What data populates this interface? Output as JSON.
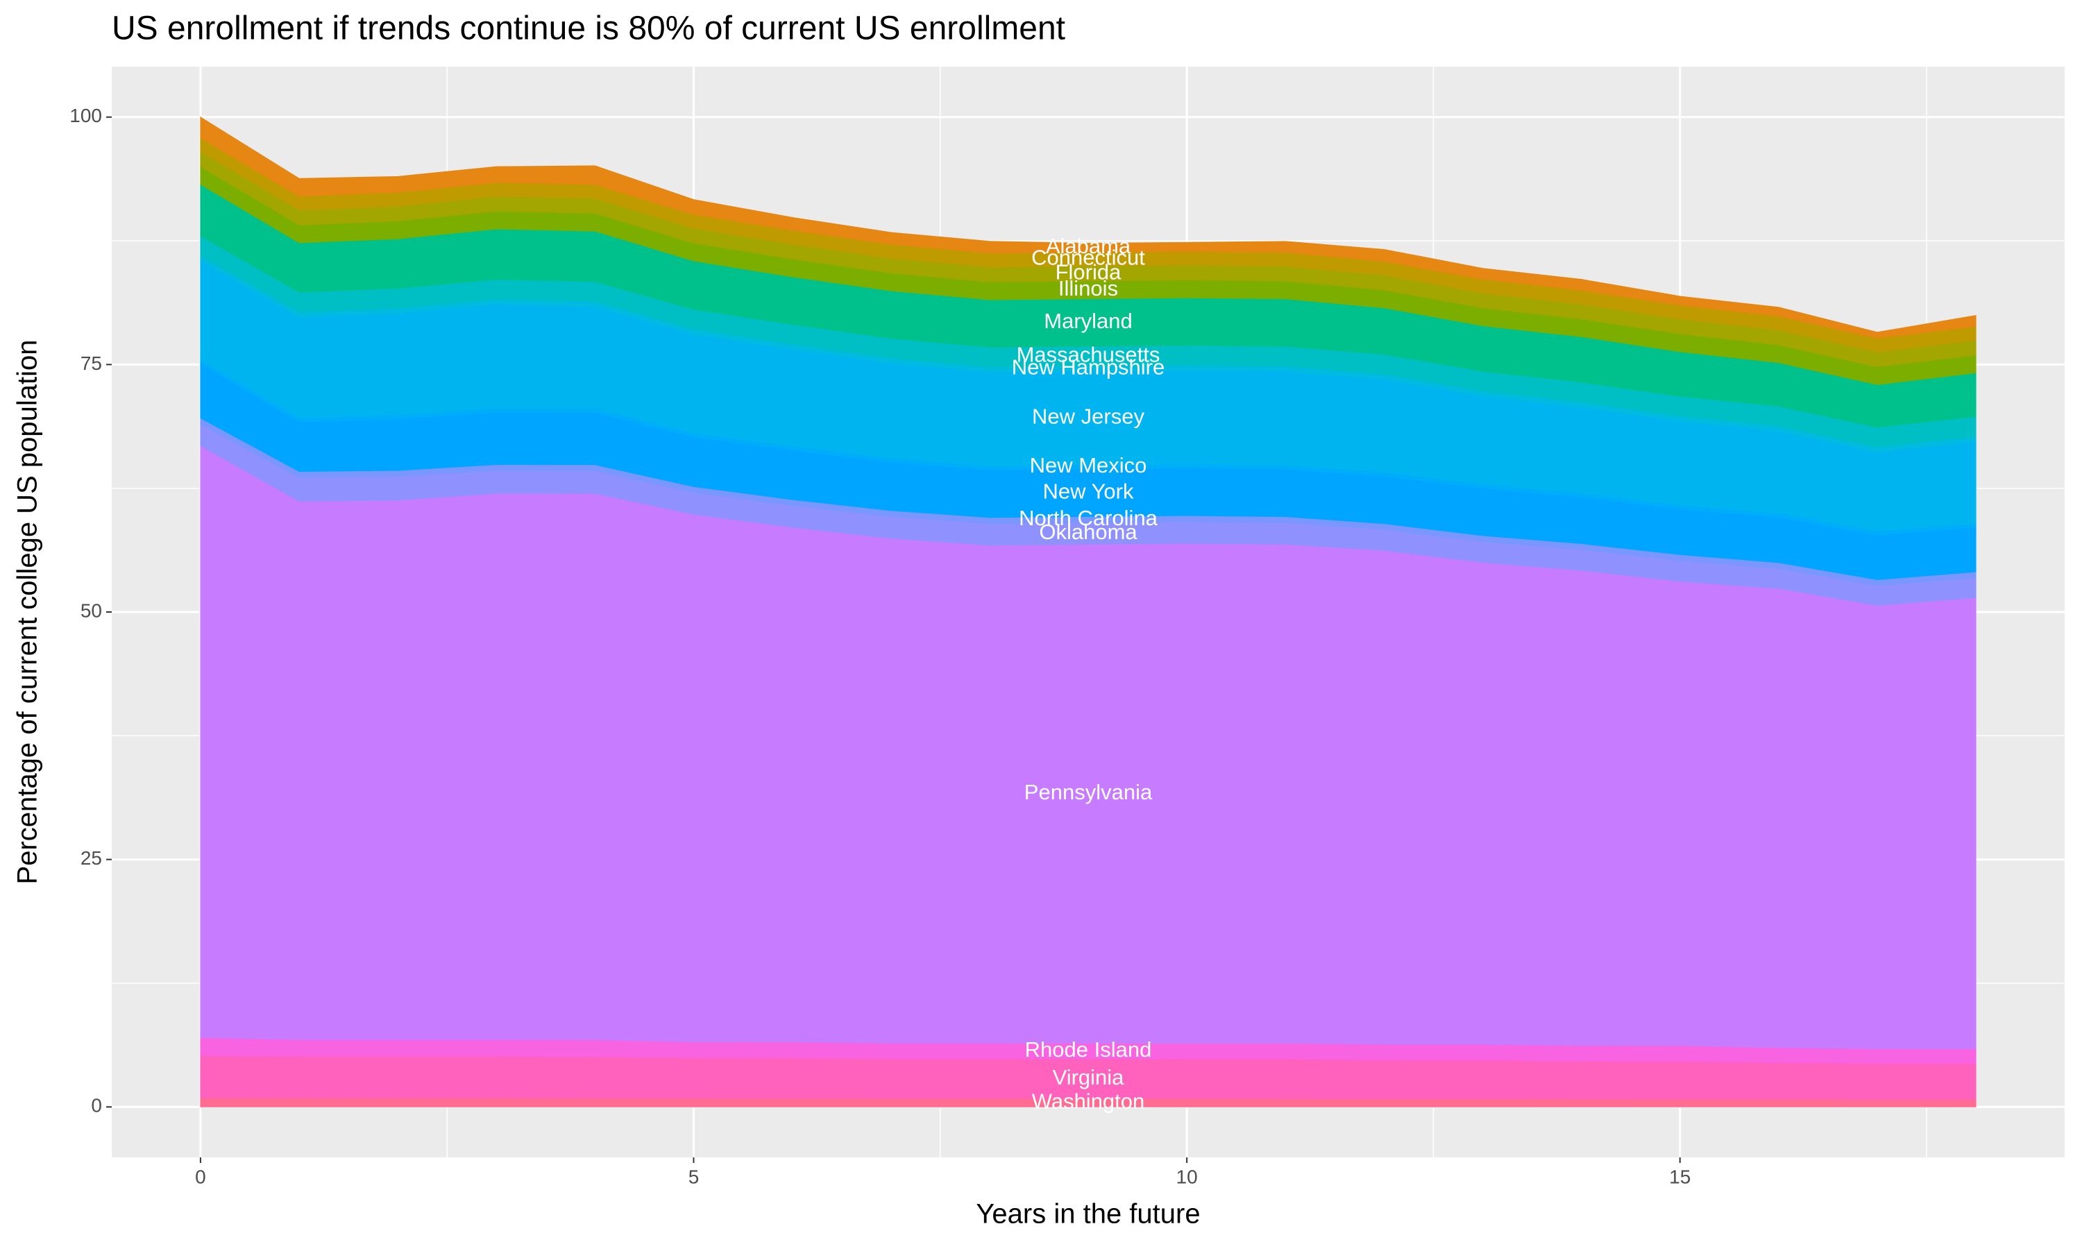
{
  "chart_data": {
    "type": "stacked_area",
    "title": "US enrollment if trends continue is 80% of current US enrollment",
    "x_label": "Years in the future",
    "y_label": "Percentage of current college US population",
    "x": [
      0,
      1,
      2,
      3,
      4,
      5,
      6,
      7,
      8,
      9,
      10,
      11,
      12,
      13,
      14,
      15,
      16,
      17,
      18
    ],
    "xlim": [
      -0.9,
      18.9
    ],
    "ylim": [
      -5.1,
      105.1
    ],
    "xticks": [
      0,
      5,
      10,
      15
    ],
    "yticks": [
      0,
      25,
      50,
      75,
      100
    ],
    "grid": true,
    "series": [
      {
        "name": "Washington",
        "color": "#FF6C91",
        "values": [
          0.9,
          0.9,
          0.9,
          0.9,
          0.88,
          0.87,
          0.86,
          0.85,
          0.85,
          0.85,
          0.84,
          0.84,
          0.83,
          0.82,
          0.81,
          0.8,
          0.79,
          0.77,
          0.76
        ]
      },
      {
        "name": "Virginia",
        "color": "#FF62BC",
        "values": [
          4.3,
          4.2,
          4.2,
          4.2,
          4.2,
          4.1,
          4.1,
          4.0,
          4.0,
          4.0,
          4.0,
          4.0,
          3.9,
          3.9,
          3.8,
          3.8,
          3.7,
          3.6,
          3.6
        ]
      },
      {
        "name": "Rhode Island",
        "color": "#F763E0",
        "values": [
          1.8,
          1.7,
          1.7,
          1.7,
          1.7,
          1.6,
          1.6,
          1.6,
          1.6,
          1.6,
          1.6,
          1.6,
          1.6,
          1.6,
          1.6,
          1.6,
          1.5,
          1.5,
          1.5
        ]
      },
      {
        "name": "Pennsylvania",
        "color": "#C77CFF",
        "values": [
          59.8,
          54.4,
          54.5,
          55.2,
          55.2,
          53.3,
          52.0,
          51.0,
          50.3,
          50.4,
          50.5,
          50.4,
          49.9,
          48.7,
          48.0,
          46.9,
          46.4,
          44.8,
          45.6
        ]
      },
      {
        "name": "Oklahoma",
        "color": "#8F91FF",
        "values": [
          2.2,
          2.4,
          2.4,
          2.3,
          2.3,
          2.2,
          2.2,
          2.2,
          2.2,
          2.2,
          2.2,
          2.2,
          2.1,
          2.1,
          2.1,
          2.1,
          2.0,
          2.0,
          2.0
        ]
      },
      {
        "name": "North Carolina",
        "color": "#7997FF",
        "values": [
          0.6,
          0.6,
          0.6,
          0.6,
          0.6,
          0.6,
          0.6,
          0.6,
          0.6,
          0.6,
          0.6,
          0.6,
          0.6,
          0.6,
          0.6,
          0.6,
          0.6,
          0.6,
          0.6
        ]
      },
      {
        "name": "New York",
        "color": "#00A5FF",
        "values": [
          5.5,
          5.0,
          5.2,
          5.3,
          5.3,
          5.0,
          5.0,
          4.9,
          4.8,
          4.8,
          4.8,
          4.8,
          4.8,
          4.8,
          4.7,
          4.6,
          4.6,
          4.5,
          4.5
        ]
      },
      {
        "name": "New Mexico",
        "color": "#00ADFA",
        "values": [
          0.4,
          0.4,
          0.4,
          0.4,
          0.4,
          0.4,
          0.4,
          0.4,
          0.4,
          0.4,
          0.4,
          0.4,
          0.4,
          0.4,
          0.4,
          0.4,
          0.4,
          0.4,
          0.4
        ]
      },
      {
        "name": "New Jersey",
        "color": "#00B4EF",
        "values": [
          10,
          10.2,
          10.3,
          10.5,
          10.3,
          10,
          9.8,
          9.6,
          9.5,
          9.5,
          9.5,
          9.5,
          9.4,
          8.9,
          8.7,
          8.5,
          8.3,
          8.0,
          8.3
        ]
      },
      {
        "name": "New Hampshire",
        "color": "#00BAE0",
        "values": [
          0.5,
          0.5,
          0.5,
          0.5,
          0.5,
          0.5,
          0.5,
          0.5,
          0.5,
          0.5,
          0.5,
          0.5,
          0.5,
          0.5,
          0.5,
          0.5,
          0.5,
          0.5,
          0.5
        ]
      },
      {
        "name": "Massachusetts",
        "color": "#00BFC4",
        "values": [
          2,
          2,
          2,
          2,
          2,
          2,
          2,
          2,
          2,
          2,
          2,
          2,
          2,
          2,
          2,
          2,
          2,
          2,
          2
        ]
      },
      {
        "name": "Maryland",
        "color": "#00C08B",
        "values": [
          5.2,
          5.0,
          5.0,
          5.1,
          5.1,
          4.9,
          4.8,
          4.8,
          4.8,
          4.8,
          4.8,
          4.8,
          4.7,
          4.6,
          4.6,
          4.5,
          4.4,
          4.3,
          4.4
        ]
      },
      {
        "name": "Illinois",
        "color": "#7CAE00",
        "values": [
          1.8,
          1.8,
          1.8,
          1.8,
          1.8,
          1.8,
          1.8,
          1.8,
          1.8,
          1.8,
          1.8,
          1.8,
          1.8,
          1.8,
          1.8,
          1.8,
          1.8,
          1.8,
          1.8
        ]
      },
      {
        "name": "Florida",
        "color": "#A3A500",
        "values": [
          1.5,
          1.5,
          1.5,
          1.5,
          1.5,
          1.5,
          1.5,
          1.5,
          1.5,
          1.5,
          1.5,
          1.5,
          1.5,
          1.5,
          1.5,
          1.5,
          1.5,
          1.5,
          1.5
        ]
      },
      {
        "name": "Connecticut",
        "color": "#C09B00",
        "values": [
          1.4,
          1.4,
          1.4,
          1.4,
          1.4,
          1.4,
          1.4,
          1.4,
          1.4,
          1.4,
          1.4,
          1.4,
          1.4,
          1.4,
          1.4,
          1.4,
          1.4,
          1.4,
          1.4
        ]
      },
      {
        "name": "Alabama",
        "color": "#E68613",
        "values": [
          2.1,
          1.8,
          1.6,
          1.6,
          1.9,
          1.5,
          1.3,
          1.2,
          1.2,
          0.9,
          0.9,
          1.1,
          1.2,
          1.1,
          1.1,
          0.9,
          0.9,
          0.6,
          1.1
        ]
      }
    ]
  }
}
